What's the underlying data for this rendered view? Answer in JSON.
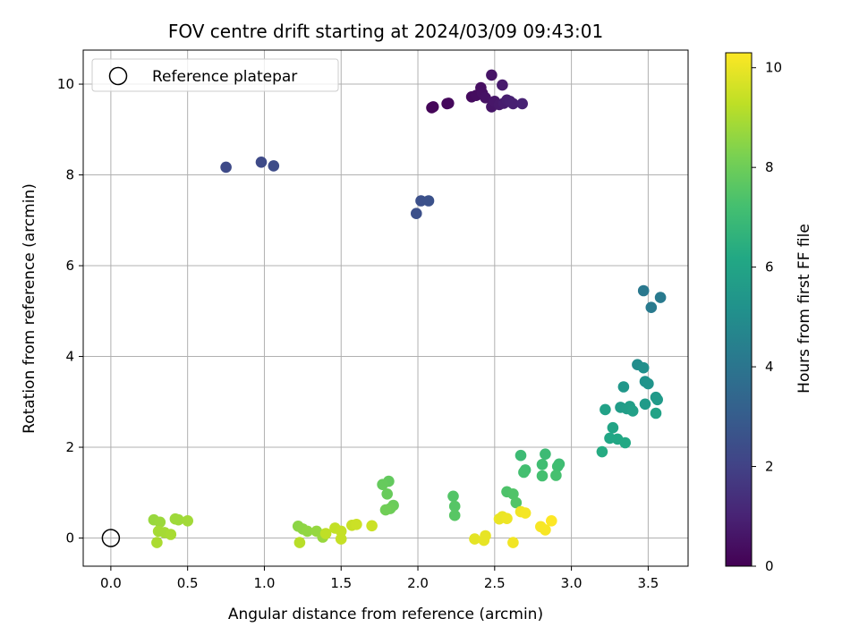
{
  "chart_data": {
    "type": "scatter",
    "title": "FOV centre drift starting at 2024/03/09 09:43:01",
    "xlabel": "Angular distance from reference (arcmin)",
    "ylabel": "Rotation from reference (arcmin)",
    "xlim": [
      -0.18,
      3.76
    ],
    "ylim": [
      -0.62,
      10.75
    ],
    "xticks": [
      "0.0",
      "0.5",
      "1.0",
      "1.5",
      "2.0",
      "2.5",
      "3.0",
      "3.5"
    ],
    "xtick_values": [
      0,
      0.5,
      1,
      1.5,
      2,
      2.5,
      3,
      3.5
    ],
    "yticks": [
      "0",
      "2",
      "4",
      "6",
      "8",
      "10"
    ],
    "ytick_values": [
      0,
      2,
      4,
      6,
      8,
      10
    ],
    "grid": true,
    "legend": {
      "placement": "upper-left",
      "label": "Reference platepar"
    },
    "reference_point": {
      "x": 0,
      "y": 0
    },
    "colorbar": {
      "label": "Hours from first FF file",
      "colormap": "viridis",
      "range": [
        0,
        10.3
      ],
      "ticks": [
        "0",
        "2",
        "4",
        "6",
        "8",
        "10"
      ],
      "tick_values": [
        0,
        2,
        4,
        6,
        8,
        10
      ]
    },
    "points": [
      {
        "x": 2.09,
        "y": 9.48,
        "c": 0.1
      },
      {
        "x": 2.1,
        "y": 9.5,
        "c": 0.15
      },
      {
        "x": 2.19,
        "y": 9.57,
        "c": 0.2
      },
      {
        "x": 2.2,
        "y": 9.58,
        "c": 0.25
      },
      {
        "x": 2.35,
        "y": 9.72,
        "c": 0.3
      },
      {
        "x": 2.38,
        "y": 9.75,
        "c": 0.35
      },
      {
        "x": 2.41,
        "y": 9.92,
        "c": 0.4
      },
      {
        "x": 2.42,
        "y": 9.8,
        "c": 0.45
      },
      {
        "x": 2.44,
        "y": 9.7,
        "c": 0.5
      },
      {
        "x": 2.48,
        "y": 10.2,
        "c": 0.55
      },
      {
        "x": 2.48,
        "y": 9.5,
        "c": 0.6
      },
      {
        "x": 2.5,
        "y": 9.62,
        "c": 0.65
      },
      {
        "x": 2.53,
        "y": 9.55,
        "c": 0.7
      },
      {
        "x": 2.55,
        "y": 9.98,
        "c": 0.75
      },
      {
        "x": 2.56,
        "y": 9.58,
        "c": 0.8
      },
      {
        "x": 2.58,
        "y": 9.65,
        "c": 0.85
      },
      {
        "x": 2.6,
        "y": 9.62,
        "c": 0.9
      },
      {
        "x": 2.62,
        "y": 9.57,
        "c": 0.95
      },
      {
        "x": 2.68,
        "y": 9.57,
        "c": 1.0
      },
      {
        "x": 0.75,
        "y": 8.17,
        "c": 2.3
      },
      {
        "x": 0.98,
        "y": 8.28,
        "c": 2.3
      },
      {
        "x": 1.06,
        "y": 8.2,
        "c": 2.35
      },
      {
        "x": 1.99,
        "y": 7.15,
        "c": 2.5
      },
      {
        "x": 2.02,
        "y": 7.43,
        "c": 2.5
      },
      {
        "x": 2.07,
        "y": 7.43,
        "c": 2.55
      },
      {
        "x": 3.47,
        "y": 5.45,
        "c": 4.1
      },
      {
        "x": 3.52,
        "y": 5.08,
        "c": 4.2
      },
      {
        "x": 3.58,
        "y": 5.3,
        "c": 4.2
      },
      {
        "x": 3.43,
        "y": 3.82,
        "c": 5.0
      },
      {
        "x": 3.47,
        "y": 3.75,
        "c": 5.1
      },
      {
        "x": 3.48,
        "y": 3.45,
        "c": 5.2
      },
      {
        "x": 3.5,
        "y": 3.4,
        "c": 5.3
      },
      {
        "x": 3.34,
        "y": 3.33,
        "c": 5.4
      },
      {
        "x": 3.55,
        "y": 3.1,
        "c": 5.5
      },
      {
        "x": 3.56,
        "y": 3.05,
        "c": 5.55
      },
      {
        "x": 3.48,
        "y": 2.95,
        "c": 5.6
      },
      {
        "x": 3.32,
        "y": 2.88,
        "c": 5.65
      },
      {
        "x": 3.36,
        "y": 2.85,
        "c": 5.7
      },
      {
        "x": 3.38,
        "y": 2.9,
        "c": 5.75
      },
      {
        "x": 3.4,
        "y": 2.8,
        "c": 5.8
      },
      {
        "x": 3.22,
        "y": 2.83,
        "c": 5.85
      },
      {
        "x": 3.55,
        "y": 2.75,
        "c": 5.9
      },
      {
        "x": 3.27,
        "y": 2.43,
        "c": 6.0
      },
      {
        "x": 3.25,
        "y": 2.2,
        "c": 6.1
      },
      {
        "x": 3.3,
        "y": 2.18,
        "c": 6.15
      },
      {
        "x": 3.35,
        "y": 2.1,
        "c": 6.2
      },
      {
        "x": 3.2,
        "y": 1.9,
        "c": 6.3
      },
      {
        "x": 2.67,
        "y": 1.82,
        "c": 7.0
      },
      {
        "x": 2.83,
        "y": 1.85,
        "c": 7.0
      },
      {
        "x": 2.92,
        "y": 1.63,
        "c": 7.05
      },
      {
        "x": 2.81,
        "y": 1.62,
        "c": 7.1
      },
      {
        "x": 2.91,
        "y": 1.58,
        "c": 7.1
      },
      {
        "x": 2.7,
        "y": 1.5,
        "c": 7.15
      },
      {
        "x": 2.69,
        "y": 1.45,
        "c": 7.2
      },
      {
        "x": 2.81,
        "y": 1.37,
        "c": 7.2
      },
      {
        "x": 2.9,
        "y": 1.38,
        "c": 7.25
      },
      {
        "x": 2.58,
        "y": 1.02,
        "c": 7.4
      },
      {
        "x": 2.62,
        "y": 0.97,
        "c": 7.45
      },
      {
        "x": 2.64,
        "y": 0.78,
        "c": 7.5
      },
      {
        "x": 2.23,
        "y": 0.92,
        "c": 7.5
      },
      {
        "x": 2.24,
        "y": 0.7,
        "c": 7.55
      },
      {
        "x": 2.24,
        "y": 0.5,
        "c": 7.6
      },
      {
        "x": 1.81,
        "y": 1.25,
        "c": 7.8
      },
      {
        "x": 1.77,
        "y": 1.18,
        "c": 7.85
      },
      {
        "x": 1.8,
        "y": 0.97,
        "c": 7.9
      },
      {
        "x": 1.84,
        "y": 0.72,
        "c": 7.95
      },
      {
        "x": 1.82,
        "y": 0.65,
        "c": 8.0
      },
      {
        "x": 1.79,
        "y": 0.62,
        "c": 8.05
      },
      {
        "x": 1.22,
        "y": 0.26,
        "c": 8.5
      },
      {
        "x": 1.25,
        "y": 0.2,
        "c": 8.55
      },
      {
        "x": 1.28,
        "y": 0.15,
        "c": 8.6
      },
      {
        "x": 1.34,
        "y": 0.15,
        "c": 8.65
      },
      {
        "x": 1.38,
        "y": 0.02,
        "c": 8.7
      },
      {
        "x": 0.28,
        "y": 0.4,
        "c": 8.7
      },
      {
        "x": 0.32,
        "y": 0.35,
        "c": 8.75
      },
      {
        "x": 0.42,
        "y": 0.42,
        "c": 8.8
      },
      {
        "x": 0.44,
        "y": 0.4,
        "c": 8.8
      },
      {
        "x": 0.5,
        "y": 0.38,
        "c": 8.85
      },
      {
        "x": 0.31,
        "y": 0.15,
        "c": 8.9
      },
      {
        "x": 0.35,
        "y": 0.12,
        "c": 8.9
      },
      {
        "x": 0.39,
        "y": 0.08,
        "c": 8.95
      },
      {
        "x": 0.3,
        "y": -0.1,
        "c": 9.0
      },
      {
        "x": 1.23,
        "y": -0.1,
        "c": 9.2
      },
      {
        "x": 1.4,
        "y": 0.1,
        "c": 9.3
      },
      {
        "x": 1.46,
        "y": 0.22,
        "c": 9.35
      },
      {
        "x": 1.5,
        "y": 0.15,
        "c": 9.4
      },
      {
        "x": 1.5,
        "y": -0.02,
        "c": 9.4
      },
      {
        "x": 1.57,
        "y": 0.28,
        "c": 9.45
      },
      {
        "x": 1.6,
        "y": 0.3,
        "c": 9.5
      },
      {
        "x": 1.7,
        "y": 0.27,
        "c": 9.5
      },
      {
        "x": 2.37,
        "y": -0.02,
        "c": 9.9
      },
      {
        "x": 2.43,
        "y": -0.05,
        "c": 9.95
      },
      {
        "x": 2.44,
        "y": 0.05,
        "c": 9.95
      },
      {
        "x": 2.53,
        "y": 0.42,
        "c": 10.0
      },
      {
        "x": 2.55,
        "y": 0.47,
        "c": 10.0
      },
      {
        "x": 2.58,
        "y": 0.43,
        "c": 10.05
      },
      {
        "x": 2.62,
        "y": -0.1,
        "c": 10.1
      },
      {
        "x": 2.67,
        "y": 0.58,
        "c": 10.1
      },
      {
        "x": 2.7,
        "y": 0.55,
        "c": 10.15
      },
      {
        "x": 2.8,
        "y": 0.25,
        "c": 10.2
      },
      {
        "x": 2.83,
        "y": 0.18,
        "c": 10.2
      },
      {
        "x": 2.87,
        "y": 0.38,
        "c": 10.3
      }
    ]
  }
}
